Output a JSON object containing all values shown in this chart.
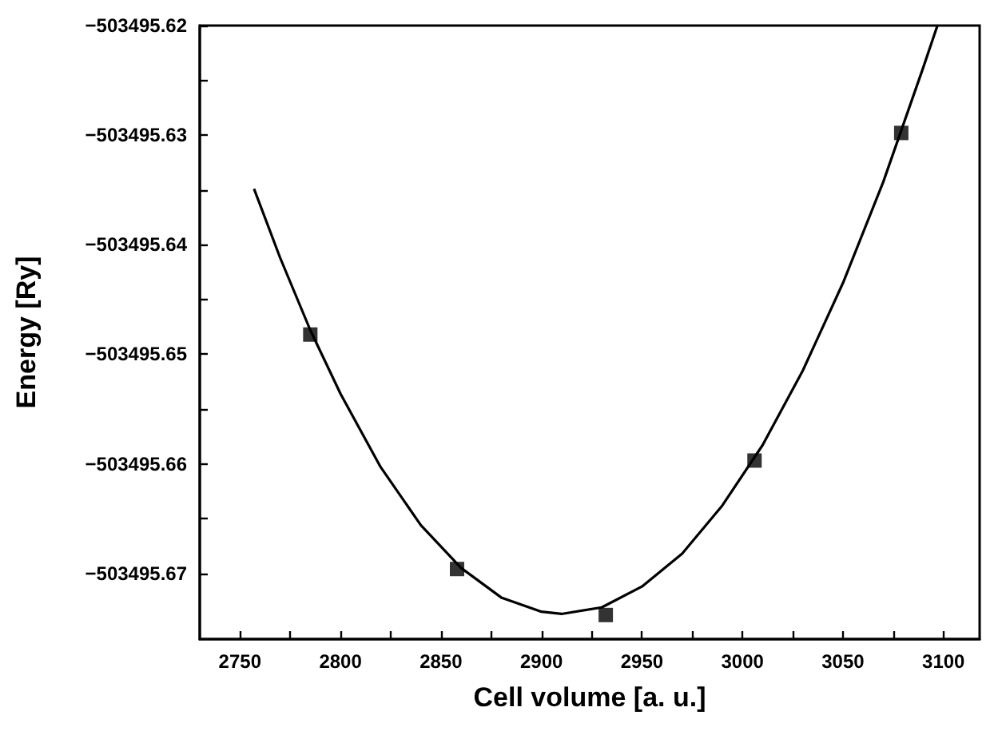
{
  "chart_data": {
    "type": "scatter",
    "xlabel": "Cell volume [a. u.]",
    "ylabel": "Energy [Ry]",
    "xlim": [
      2730,
      3118
    ],
    "ylim": [
      -503495.676,
      -503495.62
    ],
    "xticks": [
      2750,
      {
        "value": 2775,
        "label": null
      },
      2800,
      {
        "value": 2825,
        "label": null
      },
      2850,
      {
        "value": 2875,
        "label": null
      },
      2900,
      {
        "value": 2925,
        "label": null
      },
      2950,
      {
        "value": 2975,
        "label": null
      },
      3000,
      {
        "value": 3025,
        "label": null
      },
      3050,
      {
        "value": 3075,
        "label": null
      },
      3100
    ],
    "yticks": [
      {
        "value": -503495.67,
        "label": "−503495.67"
      },
      {
        "value": -503495.665,
        "label": null
      },
      {
        "value": -503495.66,
        "label": "−503495.66"
      },
      {
        "value": -503495.655,
        "label": null
      },
      {
        "value": -503495.65,
        "label": "−503495.65"
      },
      {
        "value": -503495.645,
        "label": null
      },
      {
        "value": -503495.64,
        "label": "−503495.64"
      },
      {
        "value": -503495.635,
        "label": null
      },
      {
        "value": -503495.63,
        "label": "−503495.63"
      },
      {
        "value": -503495.625,
        "label": null
      },
      {
        "value": -503495.62,
        "label": "−503495.62"
      }
    ],
    "grid": false,
    "series": [
      {
        "color": "#000000",
        "marker": "square",
        "x": [
          2785,
          2858,
          2932,
          3006,
          3079
        ],
        "values": [
          -503495.6482,
          -503495.6696,
          -503495.6738,
          -503495.6597,
          -503495.6298
        ]
      },
      {
        "type": "line",
        "color": "#000000",
        "marker": "none",
        "line_style": "solid",
        "x": [
          2757,
          2770,
          2785,
          2800,
          2820,
          2840,
          2860,
          2880,
          2900,
          2910,
          2930,
          2950,
          2970,
          2990,
          3010,
          3030,
          3050,
          3070,
          3090,
          3097
        ],
        "values": [
          -503495.6349,
          -503495.6412,
          -503495.6478,
          -503495.6536,
          -503495.6603,
          -503495.6656,
          -503495.6695,
          -503495.6722,
          -503495.6735,
          -503495.6737,
          -503495.6731,
          -503495.6712,
          -503495.6682,
          -503495.6638,
          -503495.6583,
          -503495.6515,
          -503495.6435,
          -503495.6343,
          -503495.6238,
          -503495.62
        ]
      }
    ]
  }
}
